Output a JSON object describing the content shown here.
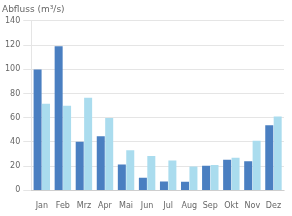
{
  "chart_data": {
    "type": "bar",
    "ylabel": "Abfluss (m³/s)",
    "categories": [
      "Jan",
      "Feb",
      "Mrz",
      "Apr",
      "Mai",
      "Jun",
      "Jul",
      "Aug",
      "Sep",
      "Okt",
      "Nov",
      "Dez"
    ],
    "series": [
      {
        "color": "#4a7fc1",
        "values": [
          99.8,
          119.0,
          40.2,
          44.8,
          21.4,
          10.4,
          7.26,
          7.15,
          20.4,
          25.2,
          24.0,
          53.7
        ]
      },
      {
        "color": "#aadcee",
        "values": [
          71.5,
          69.8,
          76.5,
          59.7,
          33.2,
          28.3,
          24.6,
          19.8,
          21.0,
          27.0,
          40.9,
          60.9
        ]
      }
    ],
    "ylim": [
      0,
      140
    ],
    "yticks": [
      0,
      20,
      40,
      60,
      80,
      100,
      120,
      140
    ],
    "grid": true
  }
}
